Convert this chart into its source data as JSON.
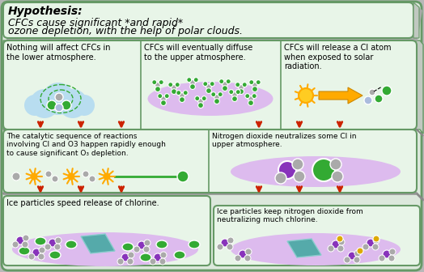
{
  "title_bold": "Hypothesis:",
  "bg_outer": "#dce8dc",
  "bg_panel": "#e8f5e8",
  "bg_gray": "#b8b8b8",
  "border_green": "#669966",
  "purple": "#8833bb",
  "green_mol": "#33aa33",
  "gray_mol": "#aaaaaa",
  "light_blue": "#b8ddf0",
  "light_purple": "#ddbbee",
  "teal": "#55aaaa",
  "orange": "#ffaa00",
  "red_arrow": "#cc2200",
  "box1_text": "Nothing will affect CFCs in\nthe lower atmosphere.",
  "box2_text": "CFCs will eventually diffuse\nto the upper atmosphere.",
  "box3_text": "CFCs will release a Cl atom\nwhen exposed to solar\nradiation.",
  "box4_text": "The catalytic sequence of reactions\ninvolving Cl and O3 happen rapidly enough\nto cause significant O₃ depletion.",
  "box5_text": "Nitrogen dioxide neutralizes some Cl in\nupper atmosphere.",
  "box6_text": "Ice particles speed release of chlorine.",
  "box7_text": "Ice particles keep nitrogen dioxide from\nneutralizing much chlorine."
}
